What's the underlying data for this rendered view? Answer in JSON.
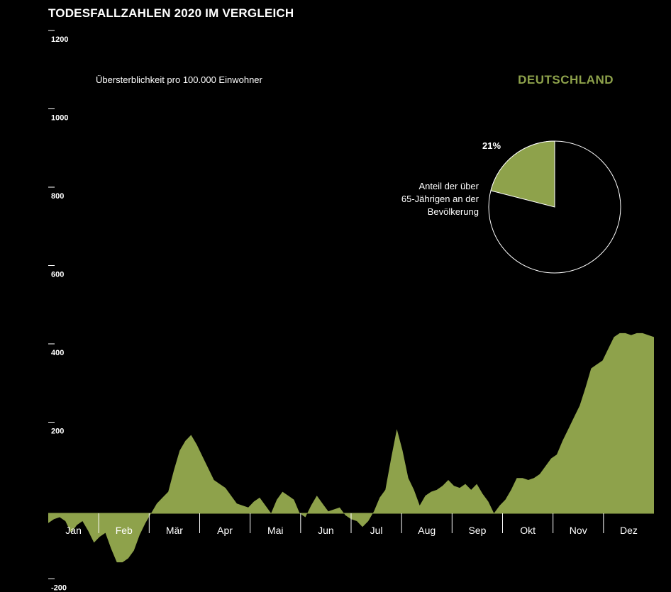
{
  "page": {
    "title": "TODESFALLZAHLEN 2020 IM VERGLEICH"
  },
  "chart_data": [
    {
      "type": "area",
      "ylabel": "Übersterblichkeit pro 100.000 Einwohner",
      "ylim": [
        -200,
        1200
      ],
      "yticks": [
        1200,
        1000,
        800,
        600,
        400,
        200,
        -200
      ],
      "months": [
        "Jan",
        "Feb",
        "Mär",
        "Apr",
        "Mai",
        "Jun",
        "Jul",
        "Aug",
        "Sep",
        "Okt",
        "Nov",
        "Dez"
      ],
      "fill_color": "#8ea24b",
      "x": [
        1,
        2,
        3,
        4,
        5,
        6,
        7,
        8,
        9,
        10,
        11,
        12,
        13,
        14,
        15,
        16,
        17,
        18,
        19,
        20,
        21,
        22,
        23,
        24,
        25,
        26,
        27,
        28,
        29,
        30,
        31,
        32,
        33,
        34,
        35,
        36,
        37,
        38,
        39,
        40,
        41,
        42,
        43,
        44,
        45,
        46,
        47,
        48,
        49,
        50,
        51,
        52,
        53,
        54,
        55,
        56,
        57,
        58,
        59,
        60,
        61,
        62,
        63,
        64,
        65,
        66,
        67,
        68,
        69,
        70,
        71,
        72,
        73,
        74,
        75,
        76,
        77,
        78,
        79,
        80,
        81,
        82,
        83,
        84,
        85,
        86,
        87,
        88,
        89,
        90,
        91,
        92,
        93,
        94,
        95,
        96,
        97,
        98,
        99,
        100,
        101,
        102,
        103,
        104,
        105,
        106,
        107
      ],
      "y": [
        -25,
        -15,
        -10,
        -20,
        -50,
        -30,
        -20,
        -45,
        -75,
        -60,
        -50,
        -90,
        -125,
        -125,
        -115,
        -95,
        -55,
        -25,
        0,
        25,
        40,
        55,
        110,
        160,
        185,
        200,
        175,
        145,
        115,
        85,
        75,
        65,
        45,
        25,
        20,
        15,
        30,
        40,
        20,
        0,
        35,
        55,
        45,
        35,
        0,
        -10,
        20,
        45,
        25,
        5,
        10,
        15,
        -5,
        -15,
        -20,
        -35,
        -20,
        5,
        40,
        60,
        140,
        215,
        160,
        90,
        60,
        20,
        45,
        55,
        60,
        70,
        85,
        70,
        65,
        75,
        60,
        75,
        50,
        30,
        0,
        20,
        35,
        60,
        90,
        90,
        85,
        90,
        100,
        120,
        140,
        150,
        185,
        215,
        245,
        275,
        320,
        370,
        380,
        390,
        420,
        450,
        460,
        460,
        455,
        460,
        460,
        455,
        450
      ]
    },
    {
      "type": "pie",
      "title": "DEUTSCHLAND",
      "values": [
        21,
        79
      ],
      "label": "21%",
      "caption": [
        "Anteil der über",
        "65-Jährigen an der",
        "Bevölkerung"
      ],
      "colors": [
        "#8ea24b",
        "#000000"
      ]
    }
  ]
}
